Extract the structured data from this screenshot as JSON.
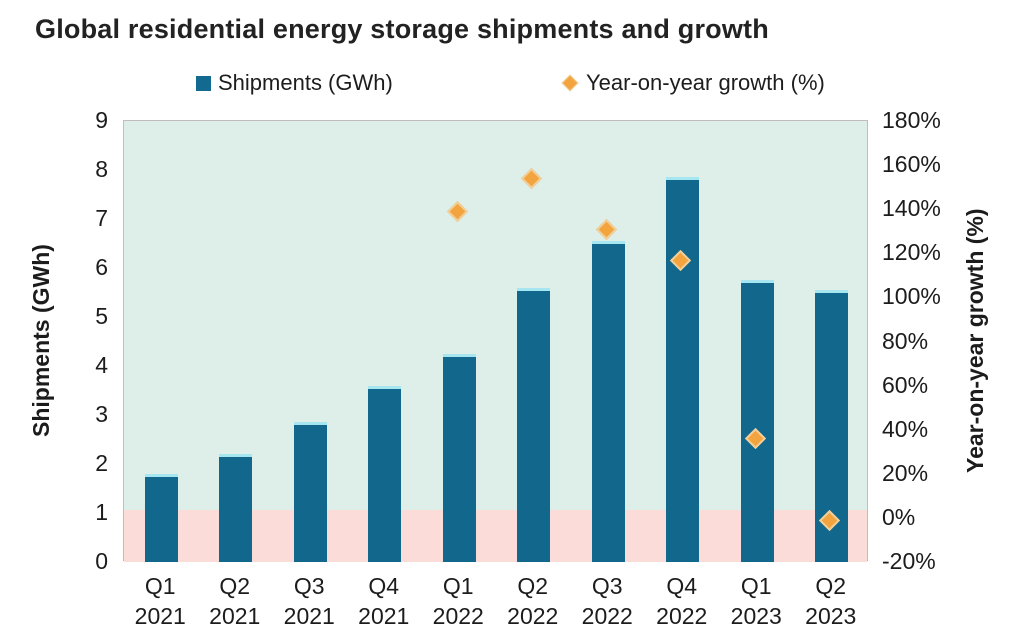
{
  "title": "Global residential energy storage shipments and growth",
  "legend": {
    "shipments": {
      "label": "Shipments (GWh)"
    },
    "growth": {
      "label": "Year-on-year growth (%)"
    }
  },
  "colors": {
    "bar": "#12678d",
    "bar_top_cap": "#a5e6f1",
    "diamond_fill": "#f3a43e",
    "diamond_border": "#f0cf9a",
    "band_positive": "#ddefe8",
    "band_negative": "#fbdcd8"
  },
  "chart_data": {
    "type": "bar",
    "subtype": "combo-bar-with-scatter-diamonds",
    "title": "Global residential energy storage shipments and growth",
    "categories": [
      "Q1 2021",
      "Q2 2021",
      "Q3 2021",
      "Q4 2021",
      "Q1 2022",
      "Q2 2022",
      "Q3 2022",
      "Q4 2022",
      "Q1 2023",
      "Q2 2023"
    ],
    "series": [
      {
        "name": "Shipments (GWh)",
        "type": "bar",
        "axis": "left",
        "values": [
          1.8,
          2.2,
          2.85,
          3.6,
          4.25,
          5.6,
          6.55,
          7.85,
          5.75,
          5.55
        ]
      },
      {
        "name": "Year-on-year growth (%)",
        "type": "scatter",
        "marker": "diamond",
        "axis": "right",
        "values": [
          null,
          null,
          null,
          null,
          138,
          153,
          130,
          116,
          35,
          -2
        ]
      }
    ],
    "axes": {
      "left": {
        "label": "Shipments (GWh)",
        "min": 0,
        "max": 9,
        "ticks": [
          "9",
          "8",
          "7",
          "6",
          "5",
          "4",
          "3",
          "2",
          "1",
          "0"
        ]
      },
      "right": {
        "label": "Year-on-year growth (%)",
        "min": -20,
        "max": 180,
        "ticks": [
          "180%",
          "160%",
          "140%",
          "120%",
          "100%",
          "80%",
          "60%",
          "40%",
          "20%",
          "0%",
          "-20%"
        ]
      }
    },
    "bands": [
      {
        "axis": "left",
        "from": 1.06,
        "to": 9,
        "color": "#ddefe8",
        "name": "positive-growth-band"
      },
      {
        "axis": "left",
        "from": 0,
        "to": 1.06,
        "color": "#fbdcd8",
        "name": "negative-growth-band"
      }
    ],
    "legend_position": "top",
    "grid": false
  }
}
